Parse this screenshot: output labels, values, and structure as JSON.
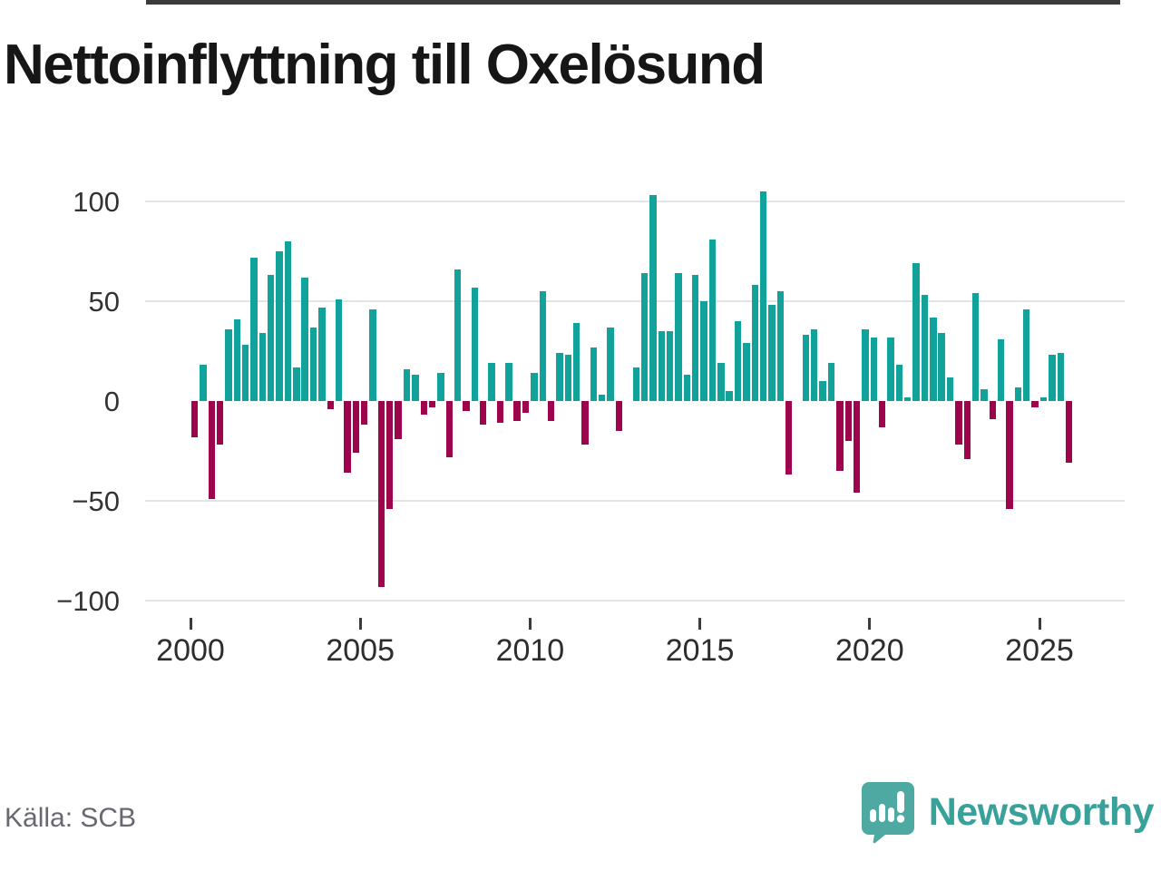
{
  "title": "Nettoinflyttning till Oxelösund",
  "source": "Källa: SCB",
  "brand": {
    "name": "Newsworthy",
    "icon": "newsworthy-speech-bubble-chart-icon",
    "text_color": "#37a19a",
    "icon_color": "#4ea9a2"
  },
  "chart_data": {
    "type": "bar",
    "title": "Nettoinflyttning till Oxelösund",
    "xlabel": "",
    "ylabel": "",
    "x_unit": "quarter",
    "y_ticks": [
      100,
      50,
      0,
      -50,
      -100
    ],
    "y_tick_labels": [
      "100",
      "50",
      "0",
      "−50",
      "−100"
    ],
    "ylim": [
      -112,
      118
    ],
    "x_tick_labels": [
      "2000",
      "2005",
      "2010",
      "2015",
      "2020",
      "2025"
    ],
    "grid": true,
    "legend": false,
    "positive_color": "#11a29b",
    "negative_color": "#9e044c",
    "values_by_year": {
      "2000": [
        -18,
        18,
        -49,
        -22
      ],
      "2001": [
        36,
        41,
        28,
        72
      ],
      "2002": [
        34,
        63,
        75,
        80
      ],
      "2003": [
        17,
        62,
        37,
        47
      ],
      "2004": [
        -4,
        51,
        -36,
        -26
      ],
      "2005": [
        -12,
        46,
        -93,
        -54
      ],
      "2006": [
        -19,
        16,
        13,
        -7
      ],
      "2007": [
        -3,
        14,
        -28,
        66
      ],
      "2008": [
        -5,
        57,
        -12,
        19
      ],
      "2009": [
        -11,
        19,
        -10,
        -6
      ],
      "2010": [
        14,
        55,
        -10,
        24
      ],
      "2011": [
        23,
        39,
        -22,
        27
      ],
      "2012": [
        3,
        37,
        -15,
        0
      ],
      "2013": [
        17,
        64,
        103,
        35
      ],
      "2014": [
        35,
        64,
        13,
        63
      ],
      "2015": [
        50,
        81,
        19,
        5
      ],
      "2016": [
        40,
        29,
        58,
        105
      ],
      "2017": [
        48,
        55,
        -37,
        0
      ],
      "2018": [
        33,
        36,
        10,
        19
      ],
      "2019": [
        -35,
        -20,
        -46,
        36
      ],
      "2020": [
        32,
        -13,
        32,
        18
      ],
      "2021": [
        2,
        69,
        53,
        42
      ],
      "2022": [
        34,
        12,
        -22,
        -29
      ],
      "2023": [
        54,
        6,
        -9,
        31
      ],
      "2024": [
        -54,
        7,
        46,
        -3
      ],
      "2025": [
        2,
        23,
        24,
        -31
      ]
    }
  }
}
